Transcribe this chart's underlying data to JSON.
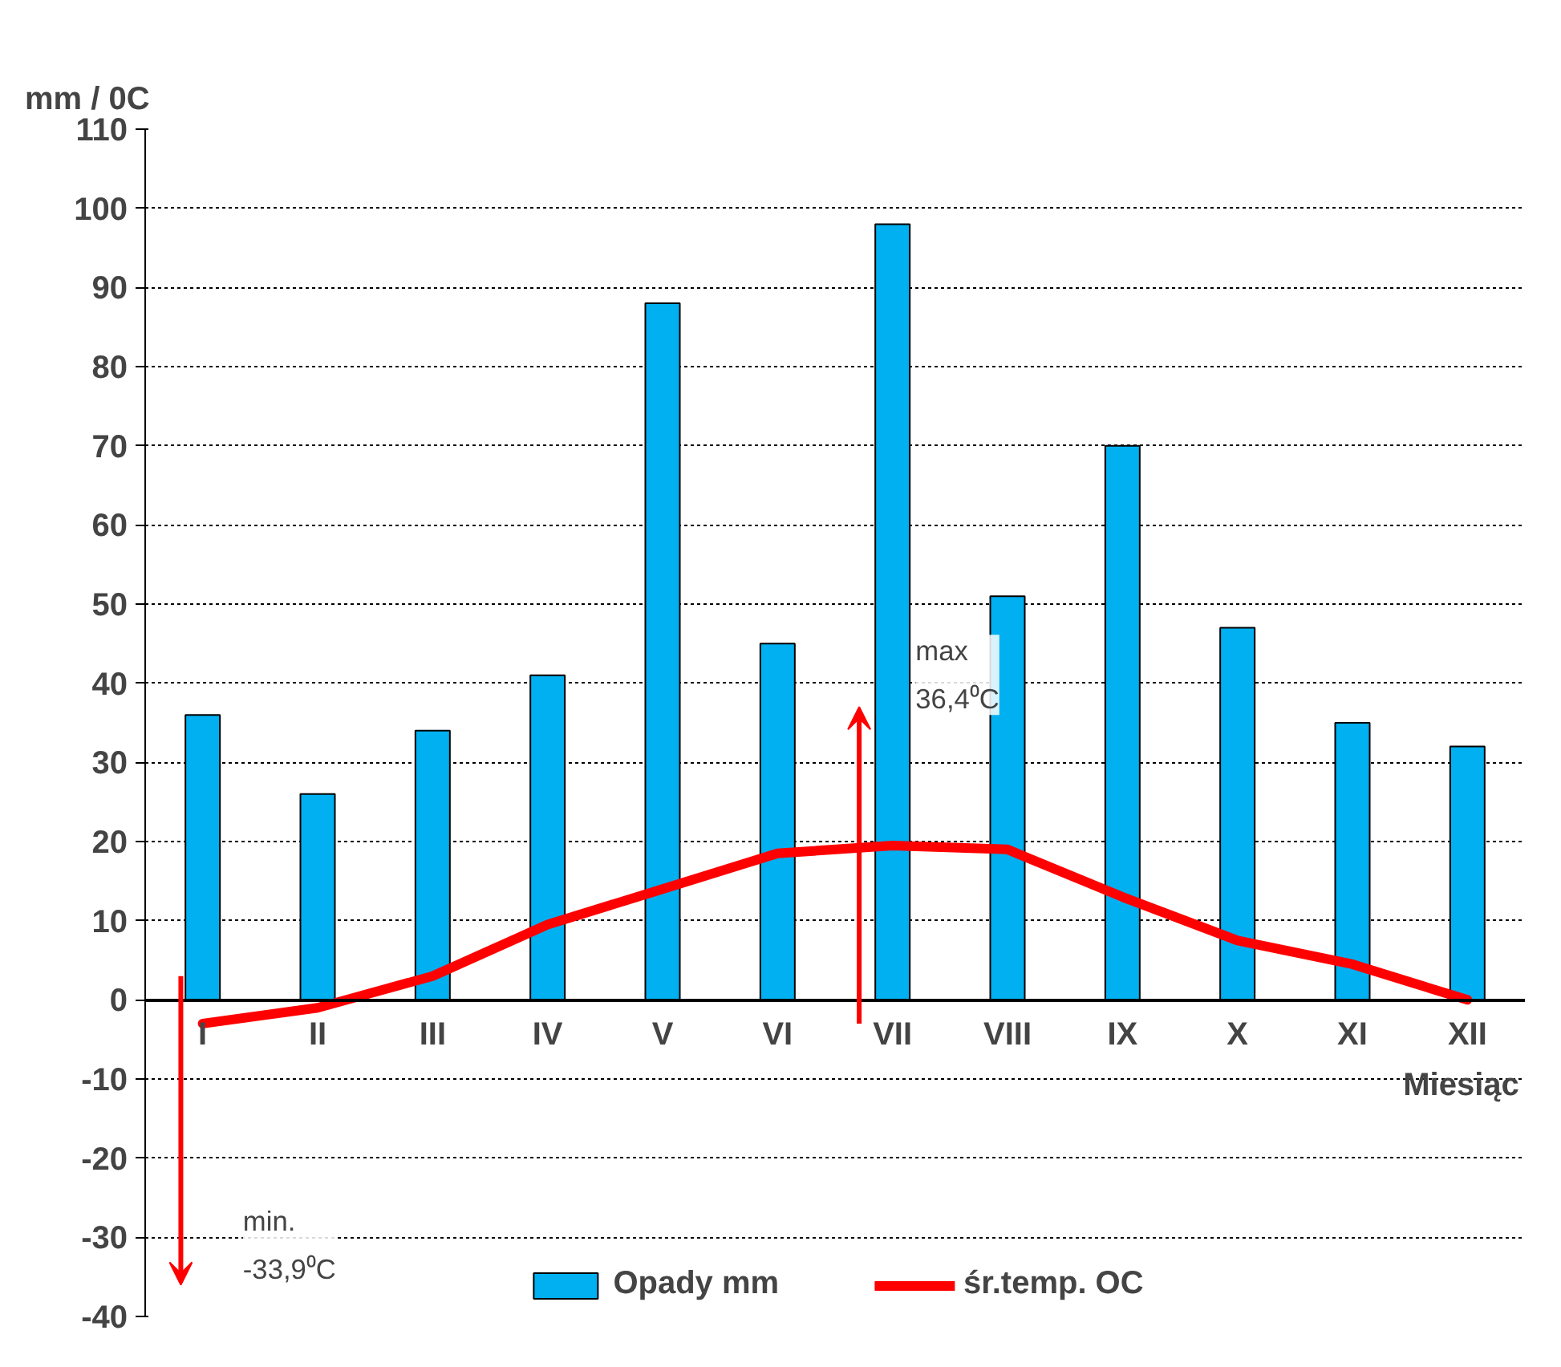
{
  "chart_data": {
    "type": "bar",
    "ylabel": "mm / 0C",
    "xlabel": "Miesiąc",
    "categories": [
      "I",
      "II",
      "III",
      "IV",
      "V",
      "VI",
      "VII",
      "VIII",
      "IX",
      "X",
      "XI",
      "XII"
    ],
    "series": [
      {
        "name": "Opady mm",
        "color": "#00b0f0",
        "values": [
          36,
          26,
          34,
          41,
          88,
          45,
          98,
          51,
          70,
          47,
          35,
          32
        ]
      },
      {
        "name": "śr.temp. OC",
        "type": "line",
        "color": "#ff0000",
        "values": [
          -3,
          -1,
          3,
          9.5,
          14,
          18.5,
          19.5,
          19,
          13,
          7.5,
          4.5,
          0
        ]
      }
    ],
    "ylim": [
      -40,
      110
    ],
    "yticks": [
      -40,
      -30,
      -20,
      -10,
      0,
      10,
      20,
      30,
      40,
      50,
      60,
      70,
      80,
      90,
      100,
      110
    ],
    "grid": "y",
    "legend": "bottom",
    "line_style": "solid",
    "marker": "none",
    "annotations": [
      "max 36,4⁰C",
      "min. -33,9⁰C"
    ]
  }
}
